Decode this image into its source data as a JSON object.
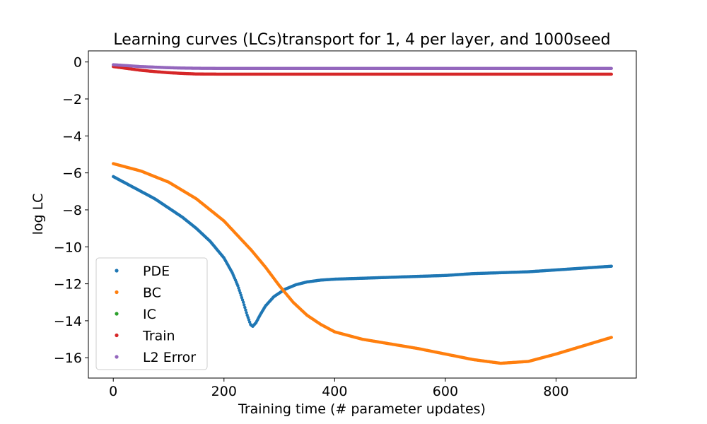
{
  "chart_data": {
    "type": "scatter",
    "title": "Learning curves (LCs)transport for 1, 4 per layer, and 1000seed",
    "xlabel": "Training time (# parameter updates)",
    "ylabel": "log LC",
    "xlim": [
      -45,
      945
    ],
    "ylim": [
      -17.1,
      0.6
    ],
    "xticks": [
      0,
      200,
      400,
      600,
      800
    ],
    "yticks": [
      0,
      -2,
      -4,
      -6,
      -8,
      -10,
      -12,
      -14,
      -16
    ],
    "xtick_labels": [
      "0",
      "200",
      "400",
      "600",
      "800"
    ],
    "ytick_labels": [
      "0",
      "−2",
      "−4",
      "−6",
      "−8",
      "−10",
      "−12",
      "−14",
      "−16"
    ],
    "grid": false,
    "legend_position": "lower-left",
    "series": [
      {
        "name": "PDE",
        "color": "#1f77b4",
        "x": [
          0,
          25,
          50,
          75,
          100,
          125,
          150,
          175,
          200,
          215,
          225,
          235,
          242,
          248,
          252,
          258,
          265,
          275,
          290,
          310,
          330,
          350,
          375,
          400,
          450,
          500,
          550,
          600,
          650,
          700,
          750,
          800,
          850,
          900
        ],
        "y": [
          -6.2,
          -6.6,
          -7.0,
          -7.4,
          -7.9,
          -8.4,
          -9.0,
          -9.7,
          -10.6,
          -11.4,
          -12.1,
          -13.0,
          -13.7,
          -14.2,
          -14.3,
          -14.1,
          -13.7,
          -13.2,
          -12.7,
          -12.3,
          -12.05,
          -11.9,
          -11.8,
          -11.75,
          -11.7,
          -11.65,
          -11.6,
          -11.55,
          -11.45,
          -11.4,
          -11.35,
          -11.25,
          -11.15,
          -11.05
        ]
      },
      {
        "name": "BC",
        "color": "#ff7f0e",
        "x": [
          0,
          50,
          100,
          150,
          200,
          250,
          275,
          300,
          325,
          350,
          375,
          400,
          450,
          500,
          550,
          600,
          650,
          700,
          750,
          800,
          850,
          900
        ],
        "y": [
          -5.5,
          -5.9,
          -6.5,
          -7.4,
          -8.6,
          -10.2,
          -11.1,
          -12.1,
          -13.0,
          -13.7,
          -14.2,
          -14.6,
          -15.0,
          -15.25,
          -15.5,
          -15.8,
          -16.1,
          -16.3,
          -16.2,
          -15.8,
          -15.35,
          -14.9
        ]
      },
      {
        "name": "IC",
        "color": "#2ca02c",
        "x": [],
        "y": []
      },
      {
        "name": "Train",
        "color": "#d62728",
        "x": [
          0,
          25,
          50,
          75,
          100,
          125,
          150,
          200,
          300,
          400,
          500,
          600,
          700,
          800,
          900
        ],
        "y": [
          -0.25,
          -0.35,
          -0.45,
          -0.52,
          -0.58,
          -0.62,
          -0.65,
          -0.66,
          -0.66,
          -0.66,
          -0.66,
          -0.66,
          -0.66,
          -0.66,
          -0.66
        ]
      },
      {
        "name": "L2 Error",
        "color": "#9467bd",
        "x": [
          0,
          25,
          50,
          75,
          100,
          125,
          150,
          200,
          300,
          400,
          500,
          600,
          700,
          800,
          900
        ],
        "y": [
          -0.15,
          -0.2,
          -0.25,
          -0.28,
          -0.31,
          -0.33,
          -0.34,
          -0.35,
          -0.35,
          -0.35,
          -0.35,
          -0.35,
          -0.35,
          -0.35,
          -0.35
        ]
      }
    ]
  }
}
